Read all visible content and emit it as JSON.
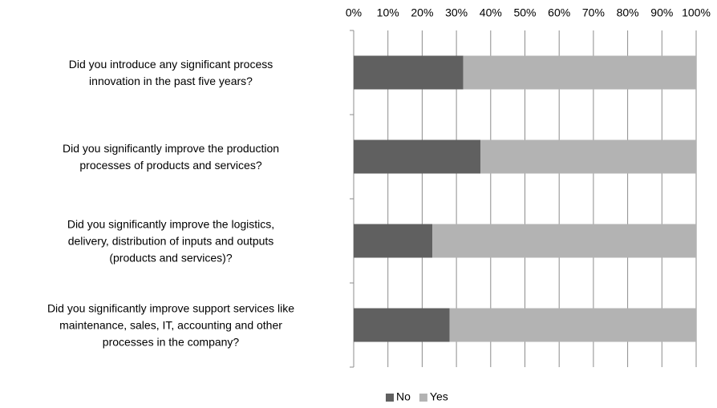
{
  "chart_data": {
    "type": "stacked-bar-horizontal",
    "categories": [
      "Did you introduce any significant process\ninnovation in the past five years?",
      "Did you significantly improve the production\nprocesses of products and services?",
      "Did you significantly improve the logistics,\ndelivery, distribution of inputs and outputs\n(products and services)?",
      "Did you significantly improve support services like\nmaintenance, sales, IT, accounting and other\nprocesses in the company?"
    ],
    "series": [
      {
        "name": "No",
        "color": "#606060",
        "values": [
          32,
          37,
          23,
          28
        ]
      },
      {
        "name": "Yes",
        "color": "#b3b3b3",
        "values": [
          68,
          63,
          77,
          72
        ]
      }
    ],
    "xlim": [
      0,
      100
    ],
    "xticks": [
      {
        "value": 0,
        "label": "0%"
      },
      {
        "value": 10,
        "label": "10%"
      },
      {
        "value": 20,
        "label": "20%"
      },
      {
        "value": 30,
        "label": "30%"
      },
      {
        "value": 40,
        "label": "40%"
      },
      {
        "value": 50,
        "label": "50%"
      },
      {
        "value": 60,
        "label": "60%"
      },
      {
        "value": 70,
        "label": "70%"
      },
      {
        "value": 80,
        "label": "80%"
      },
      {
        "value": 90,
        "label": "90%"
      },
      {
        "value": 100,
        "label": "100%"
      }
    ],
    "grid": true,
    "legend": "bottom"
  }
}
